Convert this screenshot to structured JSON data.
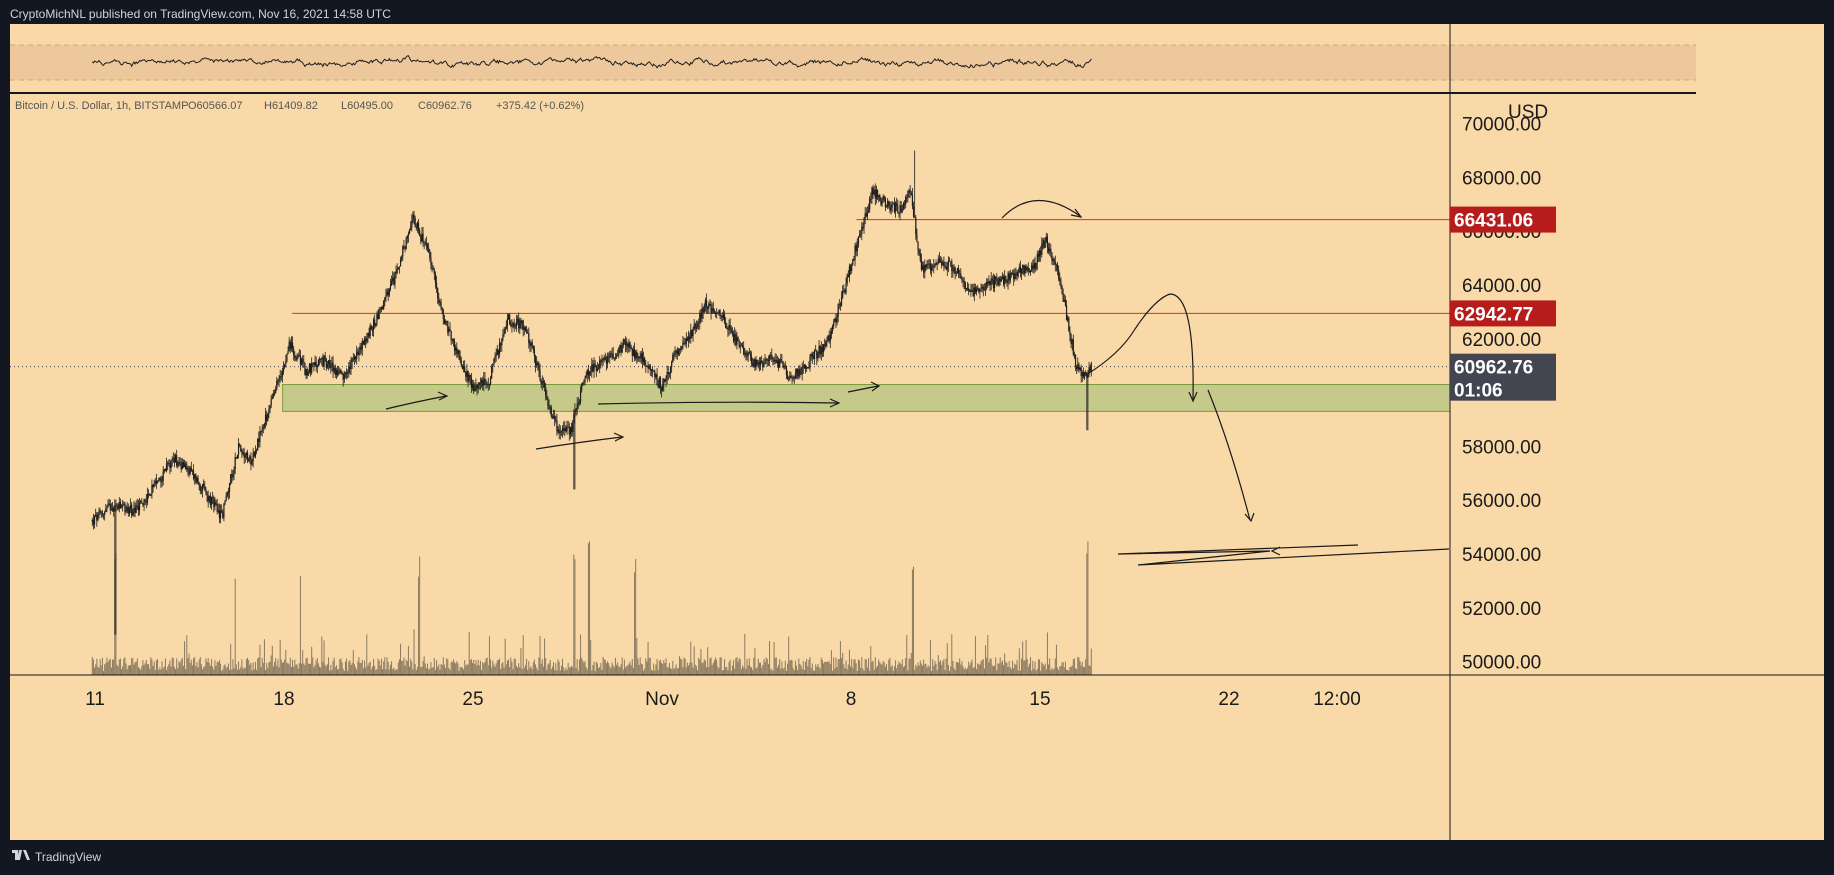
{
  "header": {
    "published_by": "CryptoMichNL published on TradingView.com, Nov 16, 2021 14:58 UTC"
  },
  "symbol_info": {
    "name": "Bitcoin / U.S. Dollar, 1h, BITSTAMP",
    "open": "O60566.07",
    "high": "H61409.82",
    "low": "L60495.00",
    "close": "C60962.76",
    "change": "+375.42 (+0.62%)"
  },
  "footer": {
    "brand": "TradingView"
  },
  "colors": {
    "background": "#f9d9a7",
    "candle": "#1e1e1e",
    "support_zone": "#c5c98a",
    "resistance_line": "#c0392b",
    "price_tag_red": "#b71c1c",
    "price_tag_current": "#434651",
    "frame": "#131722",
    "rsi_band": "#ecc89c"
  },
  "chart_data": {
    "type": "candlestick",
    "symbol": "Bitcoin / U.S. Dollar",
    "interval": "1h",
    "exchange": "BITSTAMP",
    "y_axis": {
      "unit": "USD",
      "range": [
        49500,
        71100
      ],
      "ticks": [
        "70000.00",
        "68000.00",
        "66000.00",
        "64000.00",
        "62000.00",
        "58000.00",
        "56000.00",
        "54000.00",
        "52000.00",
        "50000.00"
      ]
    },
    "x_axis": {
      "range_days": [
        -0.15,
        41.3
      ],
      "ticks": [
        {
          "label": "11",
          "day": 0
        },
        {
          "label": "18",
          "day": 7
        },
        {
          "label": "25",
          "day": 14
        },
        {
          "label": "Nov",
          "day": 21
        },
        {
          "label": "8",
          "day": 28
        },
        {
          "label": "15",
          "day": 35
        },
        {
          "label": "22",
          "day": 42
        },
        {
          "label": "12:00",
          "day": 46
        }
      ],
      "start": "Oct 10, 2021 12:00"
    },
    "price_path": [
      {
        "day": -0.1,
        "price": 55200
      },
      {
        "day": 0.6,
        "price": 55800
      },
      {
        "day": 1.5,
        "price": 55600
      },
      {
        "day": 2.3,
        "price": 56600
      },
      {
        "day": 2.9,
        "price": 57600
      },
      {
        "day": 3.6,
        "price": 57000
      },
      {
        "day": 4.2,
        "price": 56100
      },
      {
        "day": 4.7,
        "price": 55400
      },
      {
        "day": 5.3,
        "price": 58000
      },
      {
        "day": 5.8,
        "price": 57500
      },
      {
        "day": 6.6,
        "price": 59800
      },
      {
        "day": 7.2,
        "price": 61800
      },
      {
        "day": 7.8,
        "price": 60800
      },
      {
        "day": 8.5,
        "price": 61200
      },
      {
        "day": 9.2,
        "price": 60500
      },
      {
        "day": 10.3,
        "price": 62500
      },
      {
        "day": 11.0,
        "price": 64000
      },
      {
        "day": 11.8,
        "price": 66500
      },
      {
        "day": 12.4,
        "price": 65000
      },
      {
        "day": 12.9,
        "price": 62800
      },
      {
        "day": 13.4,
        "price": 61500
      },
      {
        "day": 14.0,
        "price": 60200
      },
      {
        "day": 14.6,
        "price": 60500
      },
      {
        "day": 15.3,
        "price": 62700
      },
      {
        "day": 15.9,
        "price": 62500
      },
      {
        "day": 16.5,
        "price": 60500
      },
      {
        "day": 17.1,
        "price": 58700
      },
      {
        "day": 17.6,
        "price": 58500
      },
      {
        "day": 18.2,
        "price": 60800
      },
      {
        "day": 18.9,
        "price": 61200
      },
      {
        "day": 19.6,
        "price": 61800
      },
      {
        "day": 20.3,
        "price": 61200
      },
      {
        "day": 21.0,
        "price": 60200
      },
      {
        "day": 21.5,
        "price": 61500
      },
      {
        "day": 22.0,
        "price": 62000
      },
      {
        "day": 22.6,
        "price": 63300
      },
      {
        "day": 23.2,
        "price": 62800
      },
      {
        "day": 23.9,
        "price": 61700
      },
      {
        "day": 24.5,
        "price": 61000
      },
      {
        "day": 25.1,
        "price": 61400
      },
      {
        "day": 25.8,
        "price": 60500
      },
      {
        "day": 26.5,
        "price": 61200
      },
      {
        "day": 27.2,
        "price": 62000
      },
      {
        "day": 27.8,
        "price": 64000
      },
      {
        "day": 28.3,
        "price": 65800
      },
      {
        "day": 28.8,
        "price": 67500
      },
      {
        "day": 29.3,
        "price": 67000
      },
      {
        "day": 29.8,
        "price": 66800
      },
      {
        "day": 30.2,
        "price": 67600
      },
      {
        "day": 30.6,
        "price": 64500
      },
      {
        "day": 31.2,
        "price": 64800
      },
      {
        "day": 31.8,
        "price": 64700
      },
      {
        "day": 32.4,
        "price": 63600
      },
      {
        "day": 33.0,
        "price": 64000
      },
      {
        "day": 33.6,
        "price": 64200
      },
      {
        "day": 34.2,
        "price": 64500
      },
      {
        "day": 34.8,
        "price": 64700
      },
      {
        "day": 35.2,
        "price": 65700
      },
      {
        "day": 35.6,
        "price": 64600
      },
      {
        "day": 36.0,
        "price": 62800
      },
      {
        "day": 36.3,
        "price": 61200
      },
      {
        "day": 36.6,
        "price": 60500
      },
      {
        "day": 36.9,
        "price": 60962.76
      }
    ],
    "wick_extremes": [
      {
        "day": 0.75,
        "price": 51000
      },
      {
        "day": 17.75,
        "price": 56400
      },
      {
        "day": 30.35,
        "price": 69000
      },
      {
        "day": 36.75,
        "price": 58600
      }
    ],
    "volume_spikes_days": [
      0.75,
      5.2,
      7.6,
      12.0,
      17.75,
      18.3,
      20.0,
      30.3,
      36.75
    ],
    "horizontal_levels": [
      {
        "price": 66431.06,
        "label": "66431.06",
        "start_day": 28.2
      },
      {
        "price": 62942.77,
        "label": "62942.77",
        "start_day": 7.3
      }
    ],
    "support_zone": {
      "from": 59300,
      "to": 60300,
      "start_day": 6.95
    },
    "current_price": {
      "price": 60962.76,
      "label": "60962.76",
      "countdown": "01:06"
    },
    "annotations": [
      "arrow pointing right at support, Oct 19",
      "arrow pointing right, Oct 23",
      "long arrow pointing right along support, Oct 29 - Nov 5",
      "arrow pointing right, Nov 6",
      "curved arrow over 66431 resistance, Nov 13",
      "projected curve: bounce then drop into support, Nov 16 - Nov 19",
      "projected drop toward 55000, Nov 20 - Nov 22",
      "projected sweep around 54000"
    ]
  }
}
